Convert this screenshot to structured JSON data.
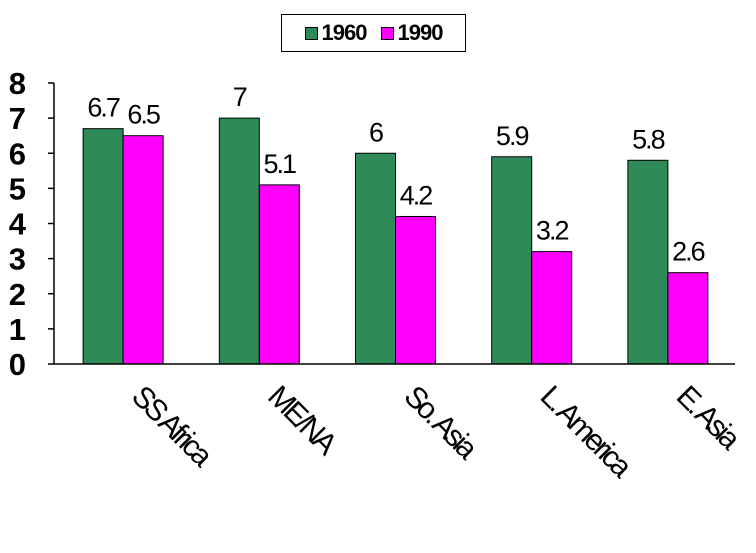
{
  "chart_data": {
    "type": "bar",
    "categories": [
      "SS Africa",
      "ME/NA",
      "So. Asia",
      "L. America",
      "E. Asia"
    ],
    "series": [
      {
        "name": "1960",
        "values": [
          6.7,
          7,
          6,
          5.9,
          5.8
        ],
        "labels": [
          "6.7",
          "7",
          "6",
          "5.9",
          "5.8"
        ],
        "color": "#2e8b57"
      },
      {
        "name": "1990",
        "values": [
          6.5,
          5.1,
          4.2,
          3.2,
          2.6
        ],
        "labels": [
          "6.5",
          "5.1",
          "4.2",
          "3.2",
          "2.6"
        ],
        "color": "#ff00ff"
      }
    ],
    "y_ticks": [
      "0",
      "1",
      "2",
      "3",
      "4",
      "5",
      "6",
      "7",
      "8"
    ],
    "ylim": [
      0,
      8
    ],
    "title": "",
    "xlabel": "",
    "ylabel": "",
    "grid": false,
    "legend_position": "top-center"
  }
}
